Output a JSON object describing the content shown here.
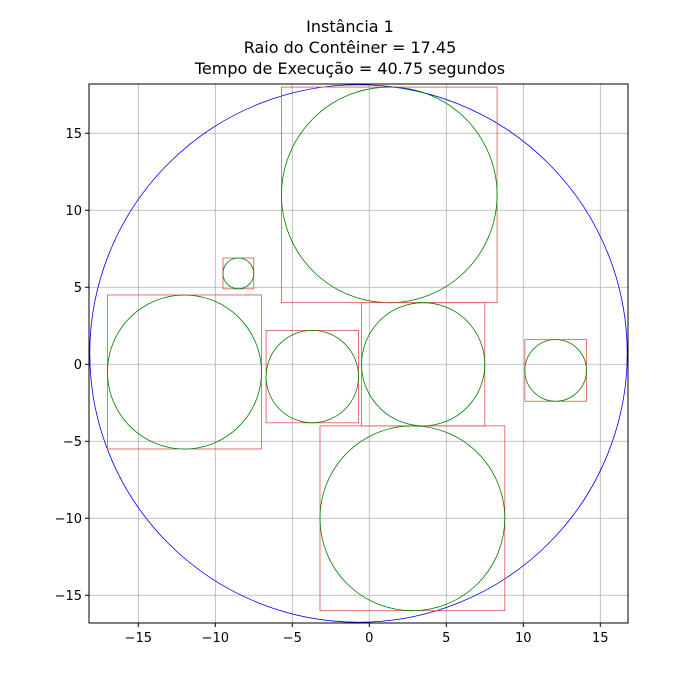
{
  "chart_data": {
    "type": "scatter",
    "title": [
      "Instância 1",
      "Raio do Contêiner = 17.45",
      "Tempo de Execução = 40.75 segundos"
    ],
    "xlabel": "",
    "ylabel": "",
    "xlim": [
      -18.2,
      16.8
    ],
    "ylim": [
      -16.8,
      18.2
    ],
    "xticks": [
      -15,
      -10,
      -5,
      0,
      5,
      10,
      15
    ],
    "yticks": [
      -15,
      -10,
      -5,
      0,
      5,
      10,
      15
    ],
    "xtick_labels": [
      "−15",
      "−10",
      "−5",
      "0",
      "5",
      "10",
      "15"
    ],
    "ytick_labels": [
      "−15",
      "−10",
      "−5",
      "0",
      "5",
      "10",
      "15"
    ],
    "grid": true,
    "container": {
      "cx": -0.7,
      "cy": 0.7,
      "r": 17.45,
      "color": "#0000ff"
    },
    "circle_color": "#008000",
    "box_color": "#e05050",
    "circles": [
      {
        "cx": 1.3,
        "cy": 11.0,
        "r": 7.0
      },
      {
        "cx": -8.5,
        "cy": 5.9,
        "r": 1.0
      },
      {
        "cx": -12.0,
        "cy": -0.5,
        "r": 5.0
      },
      {
        "cx": -3.7,
        "cy": -0.8,
        "r": 3.0
      },
      {
        "cx": 3.5,
        "cy": 0.0,
        "r": 4.0
      },
      {
        "cx": 12.1,
        "cy": -0.4,
        "r": 2.0
      },
      {
        "cx": 2.8,
        "cy": -10.0,
        "r": 6.0
      }
    ]
  }
}
